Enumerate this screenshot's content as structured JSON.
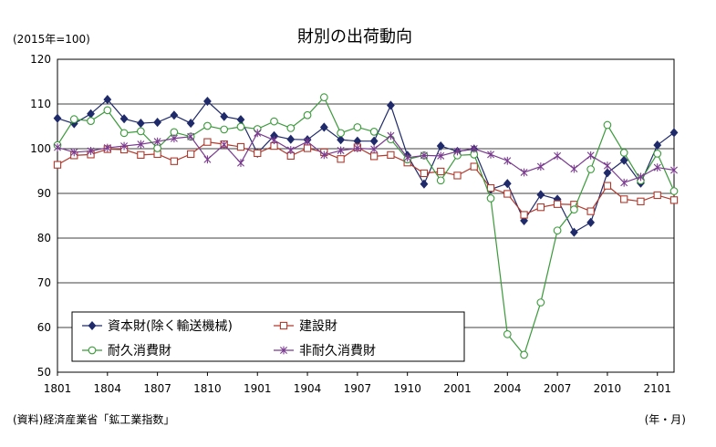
{
  "chart_data": {
    "type": "line",
    "title": "財別の出荷動向",
    "unit_note": "(2015年=100)",
    "source": "(資料)経済産業省「鉱工業指数」",
    "xlabel": "(年・月)",
    "ylabel": "",
    "ylim": [
      50,
      120
    ],
    "yticks": [
      50,
      60,
      70,
      80,
      90,
      100,
      110,
      120
    ],
    "x_tick_labels": [
      "1801",
      "1804",
      "1807",
      "1810",
      "1901",
      "1904",
      "1907",
      "1910",
      "2001",
      "2004",
      "2007",
      "2010",
      "2101"
    ],
    "grid": true,
    "legend_placement": "bottom-left",
    "x": [
      "1801",
      "1802",
      "1803",
      "1804",
      "1805",
      "1806",
      "1807",
      "1808",
      "1809",
      "1810",
      "1811",
      "1812",
      "1901",
      "1902",
      "1903",
      "1904",
      "1905",
      "1906",
      "1907",
      "1908",
      "1909",
      "1910",
      "1911",
      "1912",
      "2001",
      "2002",
      "2003",
      "2004",
      "2005",
      "2006",
      "2007",
      "2008",
      "2009",
      "2010",
      "2011",
      "2012",
      "2101",
      "2102"
    ],
    "series": [
      {
        "name": "資本財(除く輸送機械)",
        "color": "#1f2a6b",
        "marker": "diamond-filled",
        "values": [
          106.8,
          105.6,
          107.8,
          111.0,
          106.7,
          105.7,
          105.9,
          107.5,
          105.7,
          110.6,
          107.2,
          106.5,
          99.0,
          102.9,
          102.1,
          102.0,
          104.8,
          102.0,
          101.7,
          101.7,
          109.7,
          98.5,
          92.1,
          100.6,
          99.4,
          99.9,
          90.9,
          92.2,
          83.9,
          89.7,
          88.7,
          81.3,
          83.5,
          94.6,
          97.4,
          92.3,
          100.8,
          103.6
        ]
      },
      {
        "name": "建設財",
        "color": "#b03a2e",
        "marker": "square-open",
        "values": [
          96.4,
          98.5,
          98.7,
          99.9,
          99.8,
          98.6,
          98.8,
          97.2,
          98.8,
          101.5,
          101.0,
          100.4,
          99.0,
          100.6,
          98.4,
          100.1,
          99.2,
          97.7,
          100.3,
          98.3,
          98.6,
          96.9,
          94.5,
          94.9,
          94.0,
          96.0,
          91.2,
          89.9,
          85.2,
          86.9,
          87.6,
          87.5,
          86.0,
          91.7,
          88.7,
          88.2,
          89.6,
          88.5
        ]
      },
      {
        "name": "耐久消費財",
        "color": "#3a9a3a",
        "marker": "circle-open",
        "values": [
          100.8,
          106.6,
          106.2,
          108.6,
          103.5,
          103.9,
          100.1,
          103.7,
          102.7,
          105.1,
          104.3,
          104.9,
          104.4,
          106.1,
          104.6,
          107.5,
          111.5,
          103.5,
          104.8,
          103.8,
          102.1,
          97.6,
          98.5,
          92.9,
          98.5,
          98.7,
          88.9,
          58.5,
          53.9,
          65.6,
          81.7,
          86.4,
          95.4,
          105.3,
          99.1,
          92.9,
          98.9,
          90.5
        ]
      },
      {
        "name": "非耐久消費財",
        "color": "#7a3b8f",
        "marker": "star",
        "values": [
          100.3,
          99.2,
          99.5,
          100.2,
          100.6,
          101.0,
          101.6,
          102.3,
          102.7,
          97.6,
          100.9,
          96.8,
          103.5,
          101.9,
          99.7,
          101.6,
          98.6,
          99.6,
          100.1,
          99.9,
          102.9,
          98.0,
          98.5,
          98.4,
          99.4,
          100.0,
          98.7,
          97.3,
          94.7,
          96.0,
          98.4,
          95.5,
          98.5,
          96.2,
          92.4,
          93.7,
          95.8,
          95.2
        ]
      }
    ]
  }
}
